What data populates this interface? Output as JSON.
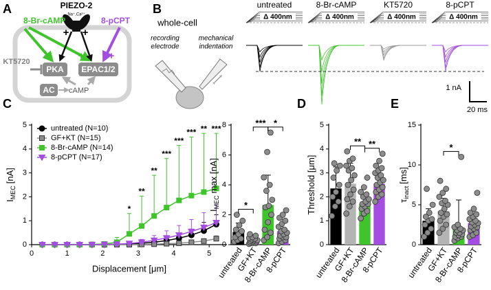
{
  "panel_labels": [
    "A",
    "B",
    "C",
    "D",
    "E"
  ],
  "diagram": {
    "agonist": "8-Br-cAMP",
    "channel": "PIEZO-2",
    "ions": "Na⁺,Ca²⁺",
    "epac_agonist": "8-pCPT",
    "inhibitor": "KT5720",
    "pka": "PKA",
    "epac": "EPAC1/2",
    "ac": "AC",
    "camp": "cAMP",
    "signs": [
      "+",
      "+",
      "+",
      "+",
      "+"
    ]
  },
  "recordings": {
    "setup": "whole-cell",
    "electrode": [
      "recording",
      "electrode"
    ],
    "indenter": [
      "mechanical",
      "indentation"
    ],
    "conditions": [
      "untreated",
      "8-Br-cAMP",
      "KT5720",
      "8-pCPT"
    ],
    "stimulus": "Δ 400nm",
    "scale_current": "1 nA",
    "scale_time": "20 ms"
  },
  "chart_data": [
    {
      "type": "line",
      "xlabel": "Displacement [μm]",
      "ylabel": {
        "main": "I",
        "sub": "MEC",
        "rest": "[nA]"
      },
      "x": [
        0.3,
        0.65,
        1.0,
        1.35,
        1.7,
        2.05,
        2.4,
        2.75,
        3.1,
        3.45,
        3.8,
        4.15,
        4.5,
        4.85,
        5.2
      ],
      "xlim": [
        0,
        5.5
      ],
      "xticks": [
        0,
        1,
        2,
        3,
        4,
        5
      ],
      "ylim": [
        0,
        5
      ],
      "yticks": [
        0,
        1,
        2,
        3,
        4,
        5
      ],
      "legend": "upper left",
      "series": [
        {
          "name": "untreated (N=10)",
          "color": "#000000",
          "marker": "circle",
          "values": [
            0,
            0,
            0,
            0,
            0,
            0,
            0.01,
            0.03,
            0.06,
            0.1,
            0.17,
            0.27,
            0.4,
            0.58,
            0.85
          ],
          "errors": [
            0,
            0,
            0,
            0,
            0,
            0,
            0.01,
            0.03,
            0.05,
            0.08,
            0.12,
            0.17,
            0.25,
            0.35,
            0.4
          ]
        },
        {
          "name": "GF+KT (N=15)",
          "color": "#8c8c8c",
          "marker": "square",
          "values": [
            0,
            0,
            0,
            0,
            0,
            0,
            0,
            0,
            0.01,
            0.02,
            0.04,
            0.06,
            0.1,
            0.15,
            0.25
          ],
          "errors": [
            0,
            0,
            0,
            0,
            0,
            0,
            0,
            0,
            0.01,
            0.02,
            0.03,
            0.04,
            0.06,
            0.08,
            0.12
          ]
        },
        {
          "name": "8-Br-cAMP (N=14)",
          "color": "#3fc42b",
          "marker": "square",
          "values": [
            0,
            0,
            0,
            0,
            0.01,
            0.03,
            0.1,
            0.45,
            0.78,
            1.2,
            1.55,
            1.85,
            2.05,
            2.2,
            2.35
          ],
          "errors": [
            0,
            0,
            0,
            0,
            0.01,
            0.05,
            0.2,
            0.85,
            1.25,
            1.7,
            2.05,
            2.3,
            2.45,
            2.45,
            2.3
          ]
        },
        {
          "name": "8-pCPT (N=17)",
          "color": "#a34ee0",
          "marker": "triangle-down",
          "values": [
            0,
            0,
            0,
            0,
            0,
            0.01,
            0.02,
            0.05,
            0.1,
            0.18,
            0.28,
            0.4,
            0.55,
            0.72,
            0.92
          ],
          "errors": [
            0,
            0,
            0,
            0,
            0,
            0.01,
            0.03,
            0.06,
            0.12,
            0.2,
            0.3,
            0.4,
            0.5,
            0.62,
            0.75
          ]
        }
      ],
      "significance": [
        null,
        null,
        null,
        null,
        null,
        null,
        null,
        "*",
        "**",
        "**",
        "***",
        "***",
        "***",
        "**",
        "***"
      ]
    },
    {
      "type": "bar",
      "ylabel": {
        "main": "I",
        "sub": "MEC",
        "rest": "max [nA]"
      },
      "categories": [
        "untreated",
        "GF+KT",
        "8-Br-cAMP",
        "8-pCPT"
      ],
      "colors": [
        "#000000",
        "#b4b4b4",
        "#3fc42b",
        "#a34ee0"
      ],
      "values": [
        0.85,
        0.3,
        2.65,
        0.9
      ],
      "errors": [
        0.6,
        0.3,
        2.0,
        0.8
      ],
      "points": [
        [
          0.2,
          0.3,
          0.4,
          0.5,
          0.7,
          0.9,
          1.0,
          1.3,
          1.6,
          2.0
        ],
        [
          0.05,
          0.1,
          0.1,
          0.15,
          0.2,
          0.2,
          0.25,
          0.3,
          0.3,
          0.35,
          0.4,
          0.45,
          0.5,
          0.6,
          0.7
        ],
        [
          0.3,
          0.5,
          0.8,
          1.0,
          1.5,
          2.0,
          2.5,
          2.6,
          3.0,
          3.6,
          4.0,
          4.5,
          6.2,
          7.5
        ],
        [
          0.1,
          0.2,
          0.3,
          0.4,
          0.5,
          0.5,
          0.6,
          0.7,
          0.8,
          0.9,
          1.0,
          1.2,
          1.4,
          1.6,
          1.8,
          2.0,
          2.3
        ]
      ],
      "ylim": [
        0,
        8
      ],
      "yticks": [
        0,
        2,
        4,
        6,
        8
      ],
      "brackets": [
        {
          "between": [
            "untreated",
            "GF+KT"
          ],
          "label": "*"
        },
        {
          "between": [
            "GF+KT",
            "8-Br-cAMP"
          ],
          "label": "***"
        },
        {
          "between": [
            "8-Br-cAMP",
            "8-pCPT"
          ],
          "label": "*"
        }
      ]
    },
    {
      "type": "bar",
      "ylabel": {
        "main": "Threshold [μm]"
      },
      "categories": [
        "untreated",
        "GF+KT",
        "8-Br-cAMP",
        "8-pCPT"
      ],
      "colors": [
        "#000000",
        "#b4b4b4",
        "#3fc42b",
        "#a34ee0"
      ],
      "values": [
        2.35,
        2.55,
        1.7,
        2.55
      ],
      "errors": [
        0.9,
        0.85,
        0.4,
        0.55
      ],
      "points": [
        [
          1.2,
          1.6,
          1.8,
          2.0,
          2.2,
          2.5,
          2.8,
          3.1,
          3.3,
          3.4
        ],
        [
          1.3,
          1.6,
          1.8,
          1.9,
          2.1,
          2.3,
          2.5,
          2.7,
          2.9,
          3.1,
          3.2,
          3.3,
          3.5,
          3.6,
          3.9
        ],
        [
          1.1,
          1.3,
          1.4,
          1.5,
          1.6,
          1.7,
          1.7,
          1.8,
          1.9,
          2.0,
          2.1,
          2.2,
          2.4,
          2.8
        ],
        [
          1.8,
          2.0,
          2.1,
          2.2,
          2.3,
          2.4,
          2.5,
          2.6,
          2.7,
          2.8,
          2.9,
          3.0,
          3.1,
          3.2,
          3.3,
          3.5,
          3.8
        ]
      ],
      "ylim": [
        0,
        5
      ],
      "yticks": [
        0,
        1,
        2,
        3,
        4,
        5
      ],
      "brackets": [
        {
          "between": [
            "GF+KT",
            "8-Br-cAMP"
          ],
          "label": "**"
        },
        {
          "between": [
            "8-Br-cAMP",
            "8-pCPT"
          ],
          "label": "**"
        }
      ]
    },
    {
      "type": "bar",
      "ylabel": {
        "main": "τ",
        "sub": "inact",
        "rest": "[ms]"
      },
      "categories": [
        "untreated",
        "GF+KT",
        "8-Br-cAMP",
        "8-pCPT"
      ],
      "colors": [
        "#000000",
        "#b4b4b4",
        "#3fc42b",
        "#a34ee0"
      ],
      "values": [
        3.0,
        4.2,
        2.0,
        2.7
      ],
      "errors": [
        1.5,
        1.6,
        3.6,
        1.1
      ],
      "points": [
        [
          1.0,
          1.5,
          2.0,
          2.5,
          3.0,
          3.2,
          3.5,
          4.0,
          5.0,
          7.0
        ],
        [
          1.5,
          2.0,
          2.5,
          3.0,
          3.5,
          3.8,
          4.0,
          4.5,
          5.0,
          5.2,
          5.5,
          6.0,
          6.5,
          7.0,
          8.0
        ],
        [
          0.5,
          0.8,
          1.0,
          1.0,
          1.2,
          1.3,
          1.5,
          1.5,
          1.8,
          1.8,
          2.0,
          2.2,
          2.5,
          11.0
        ],
        [
          1.0,
          1.2,
          1.5,
          1.8,
          2.0,
          2.2,
          2.3,
          2.5,
          2.7,
          2.8,
          3.0,
          3.2,
          3.5,
          3.8,
          4.0,
          4.5,
          6.5
        ]
      ],
      "ylim": [
        0,
        15
      ],
      "yticks": [
        0,
        5,
        10,
        15
      ],
      "brackets": [
        {
          "between": [
            "GF+KT",
            "8-Br-cAMP"
          ],
          "label": "*"
        }
      ]
    }
  ]
}
